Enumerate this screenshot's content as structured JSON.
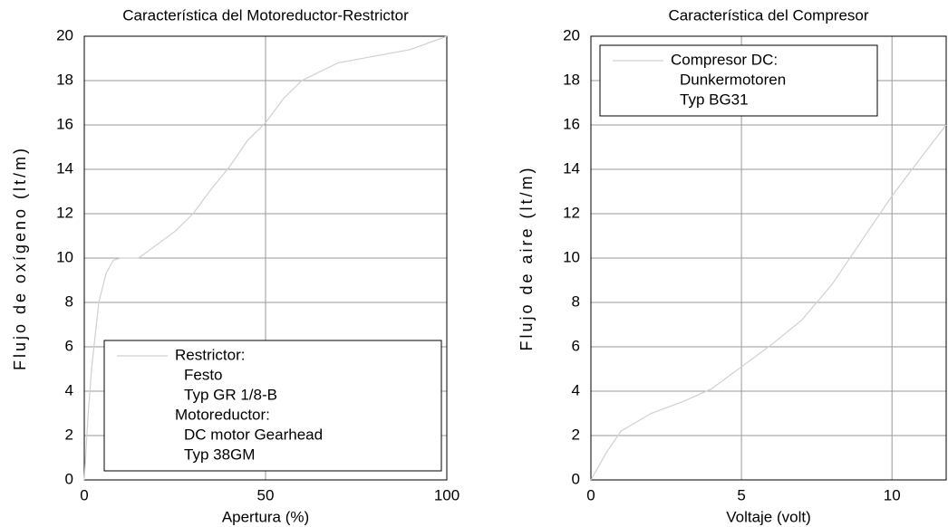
{
  "chart_data": [
    {
      "type": "line",
      "title": "Característica del Motoreductor-Restrictor",
      "xlabel": "Apertura (%)",
      "ylabel": "Flujo de oxígeno (lt/m)",
      "x": [
        0,
        1,
        2,
        4,
        6,
        8,
        10,
        15,
        20,
        25,
        30,
        35,
        40,
        45,
        50,
        55,
        60,
        65,
        70,
        80,
        90,
        100
      ],
      "series": [
        {
          "name": [
            "Restrictor:",
            "Festo",
            "Typ GR 1/8-B",
            "Motoreductor:",
            "DC motor Gearhead",
            "Typ 38GM"
          ],
          "color": "#d0d0d0",
          "values": [
            0,
            2.8,
            5,
            8,
            9.3,
            9.9,
            10,
            10,
            10.6,
            11.2,
            12,
            13.1,
            14.1,
            15.3,
            16.1,
            17.2,
            18,
            18.4,
            18.8,
            19.1,
            19.4,
            20
          ]
        }
      ],
      "xlim": [
        0,
        100
      ],
      "xticks": [
        0,
        50,
        100
      ],
      "ylim": [
        0,
        20
      ],
      "yticks": [
        0,
        2,
        4,
        6,
        8,
        10,
        12,
        14,
        16,
        18,
        20
      ],
      "grid": true,
      "legend": "lower center"
    },
    {
      "type": "line",
      "title": "Característica del Compresor",
      "xlabel": "Voltaje (volt)",
      "ylabel": "Flujo de aire (lt/m)",
      "x": [
        0,
        0.5,
        1,
        2,
        3,
        4,
        5,
        6,
        7,
        8,
        9,
        10,
        11,
        11.8
      ],
      "series": [
        {
          "name": [
            "Compresor DC:",
            "Dunkermotoren",
            "Typ BG31"
          ],
          "color": "#d0d0d0",
          "values": [
            0,
            1.2,
            2.2,
            3,
            3.5,
            4.1,
            5.1,
            6.1,
            7.2,
            8.8,
            10.8,
            12.8,
            14.6,
            16
          ]
        }
      ],
      "xlim": [
        0,
        11.8
      ],
      "xticks": [
        0,
        5,
        10
      ],
      "ylim": [
        0,
        20
      ],
      "yticks": [
        0,
        2,
        4,
        6,
        8,
        10,
        12,
        14,
        16,
        18,
        20
      ],
      "grid": true,
      "legend": "upper left"
    }
  ]
}
